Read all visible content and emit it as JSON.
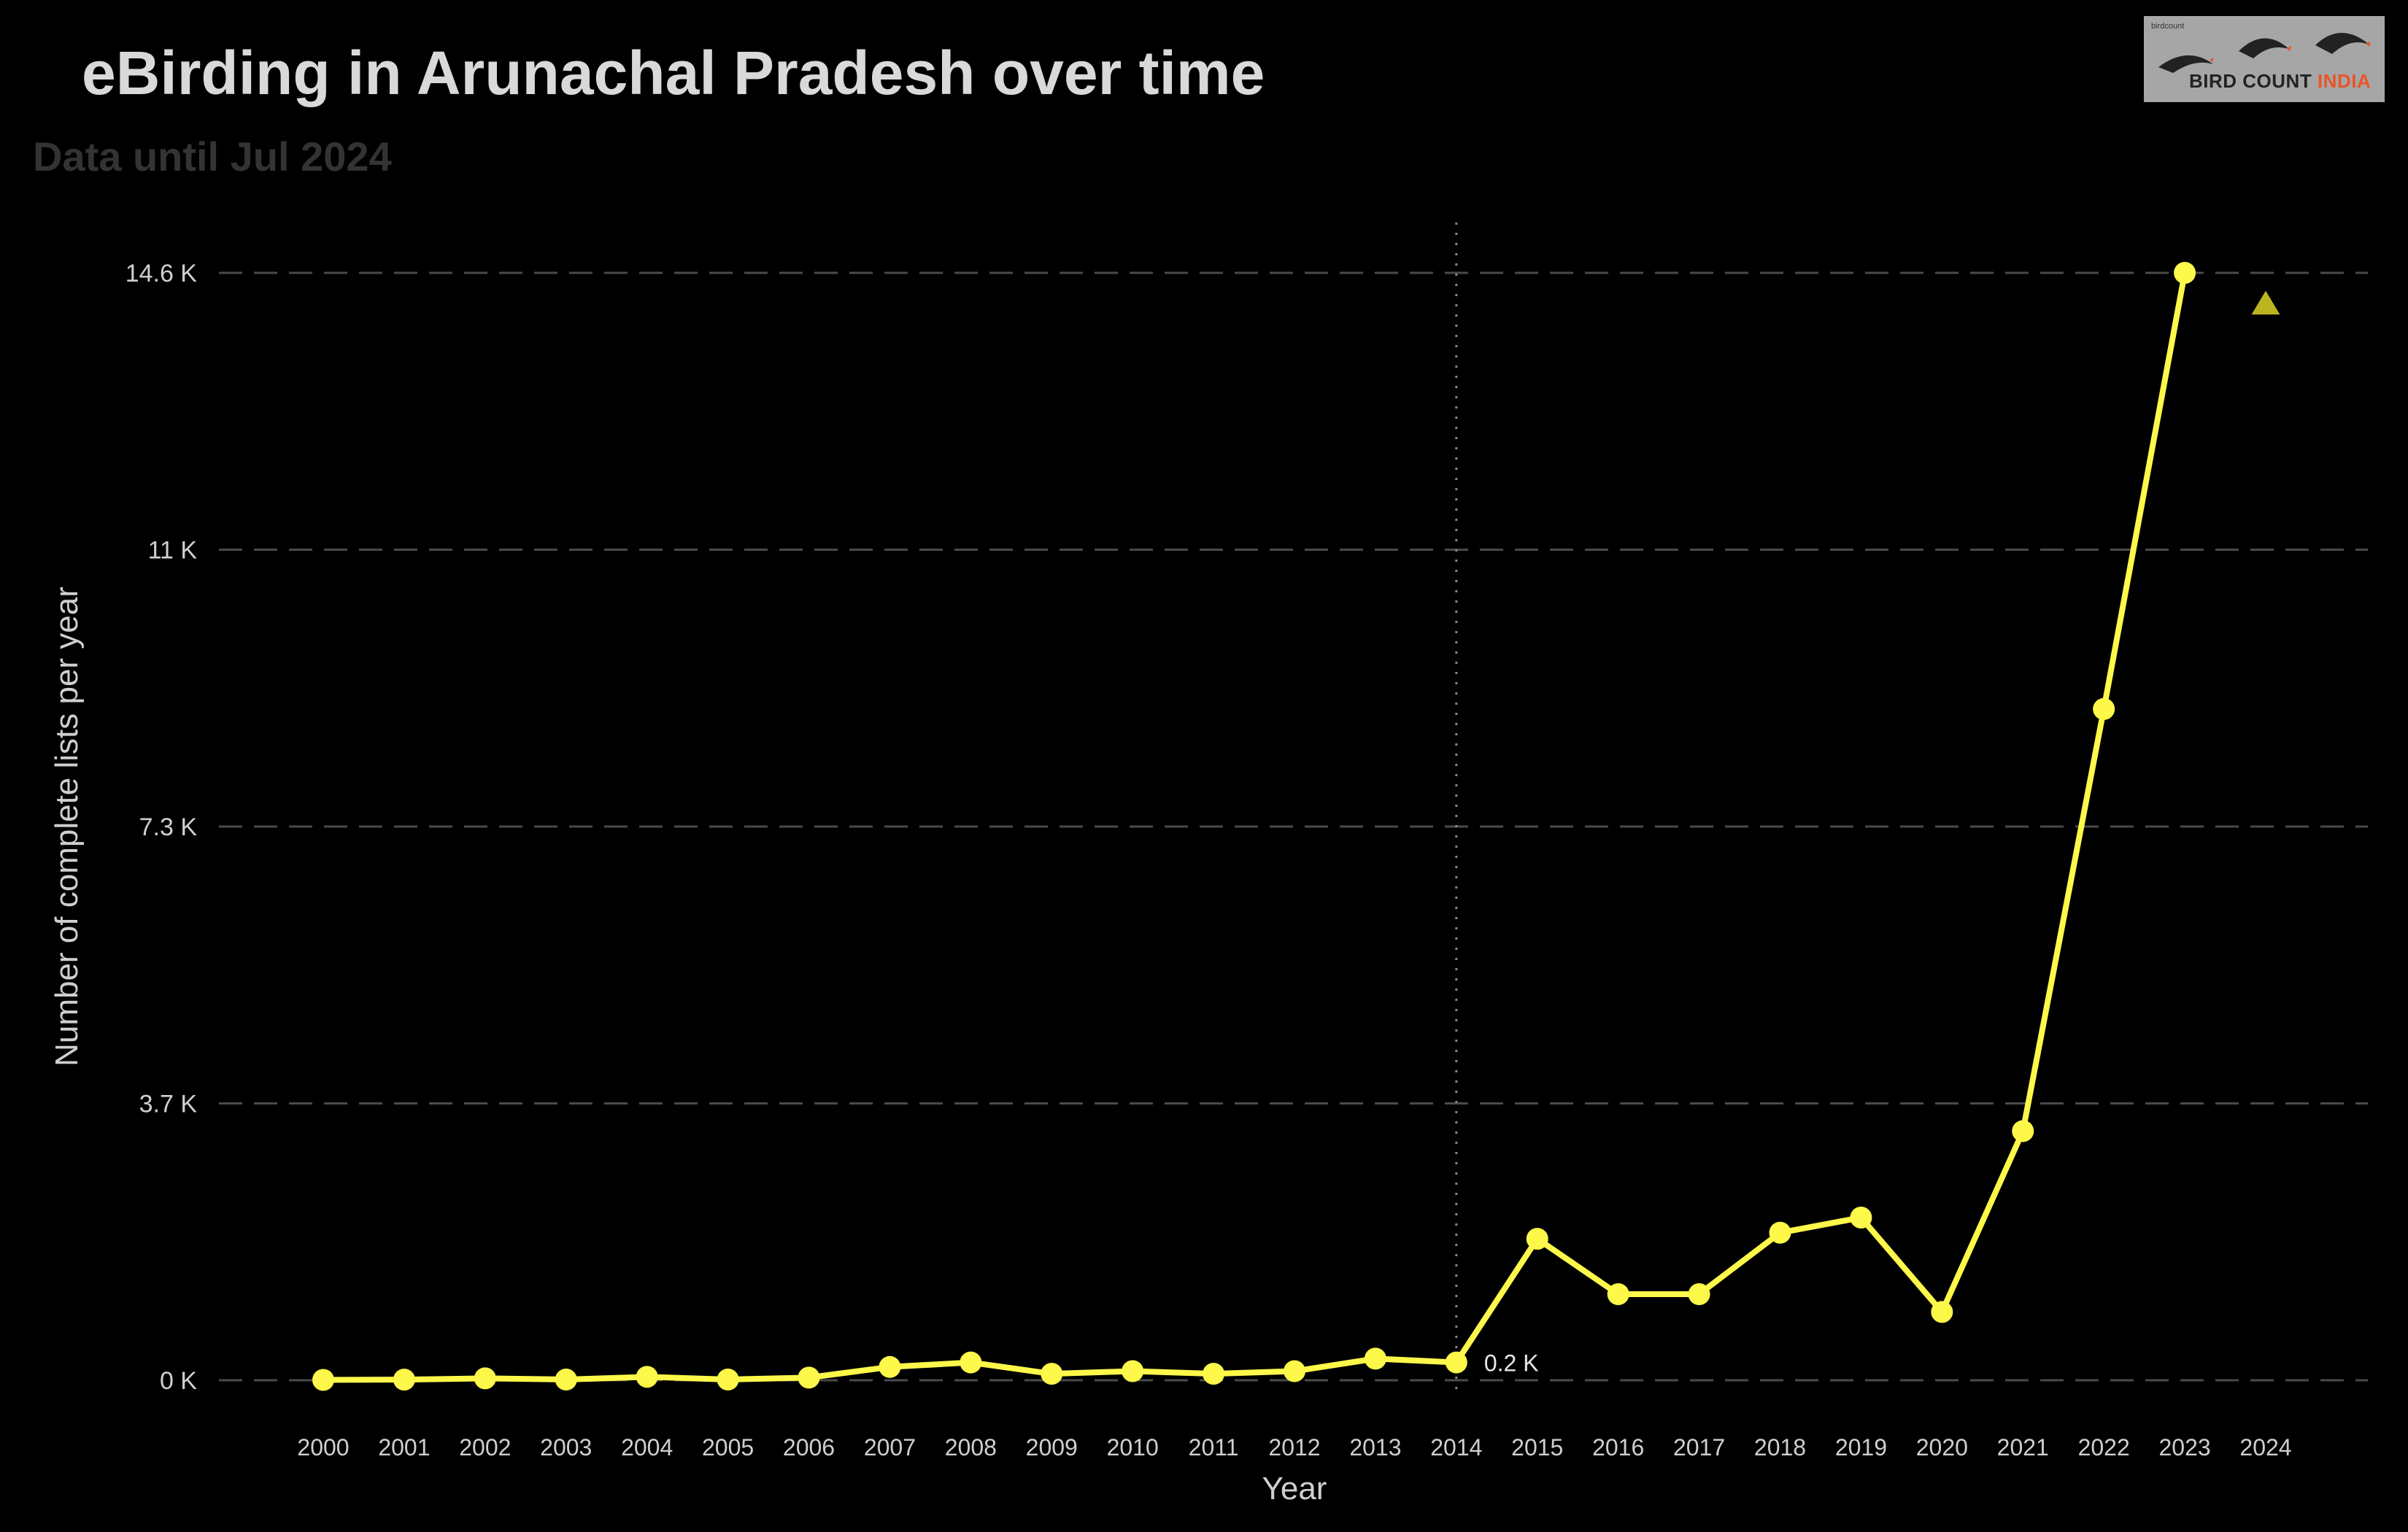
{
  "title": "eBirding in Arunachal Pradesh over time",
  "subtitle": "Data until Jul 2024",
  "logo": {
    "small_text": "birdcount",
    "brand_main": "BIRD COUNT ",
    "brand_accent": "INDIA"
  },
  "colors": {
    "line": "#fdf849",
    "grid": "#4a4a4a",
    "text": "#cfcfcf",
    "marker_2024": "#bcb51f"
  },
  "chart_data": {
    "type": "line",
    "title": "eBirding in Arunachal Pradesh over time",
    "subtitle": "Data until Jul 2024",
    "xlabel": "Year",
    "ylabel": "Number of complete lists per year",
    "x": [
      2000,
      2001,
      2002,
      2003,
      2004,
      2005,
      2006,
      2007,
      2008,
      2009,
      2010,
      2011,
      2012,
      2013,
      2014,
      2015,
      2016,
      2017,
      2018,
      2019,
      2020,
      2021,
      2022,
      2023
    ],
    "series": [
      {
        "values": [
          5,
          8,
          25,
          10,
          45,
          10,
          35,
          175,
          235,
          85,
          120,
          85,
          120,
          285,
          235,
          1865,
          1135,
          1135,
          1945,
          2145,
          900,
          3285,
          8850,
          14600
        ]
      }
    ],
    "partial_year": {
      "x": 2024,
      "value": 14200,
      "marker": "triangle"
    },
    "annotation": {
      "x": 2014,
      "value": 235,
      "text": "0.2 K",
      "vline": true
    },
    "yticks": [
      0,
      3650,
      7300,
      10950,
      14600
    ],
    "ytick_labels": [
      "0 K",
      "3.7 K",
      "7.3 K",
      "11 K",
      "14.6 K"
    ],
    "xticks": [
      2000,
      2001,
      2002,
      2003,
      2004,
      2005,
      2006,
      2007,
      2008,
      2009,
      2010,
      2011,
      2012,
      2013,
      2014,
      2015,
      2016,
      2017,
      2018,
      2019,
      2020,
      2021,
      2022,
      2023,
      2024
    ],
    "xtick_labels": [
      "2000",
      "2001",
      "2002",
      "2003",
      "2004",
      "2005",
      "2006",
      "2007",
      "2008",
      "2009",
      "2010",
      "2011",
      "2012",
      "2013",
      "2014",
      "2015",
      "2016",
      "2017",
      "2018",
      "2019",
      "2020",
      "2021",
      "2022",
      "2023",
      "2024"
    ],
    "ylim": [
      0,
      14600
    ],
    "xlim": [
      2000,
      2024
    ],
    "grid": "horizontal dashed"
  }
}
